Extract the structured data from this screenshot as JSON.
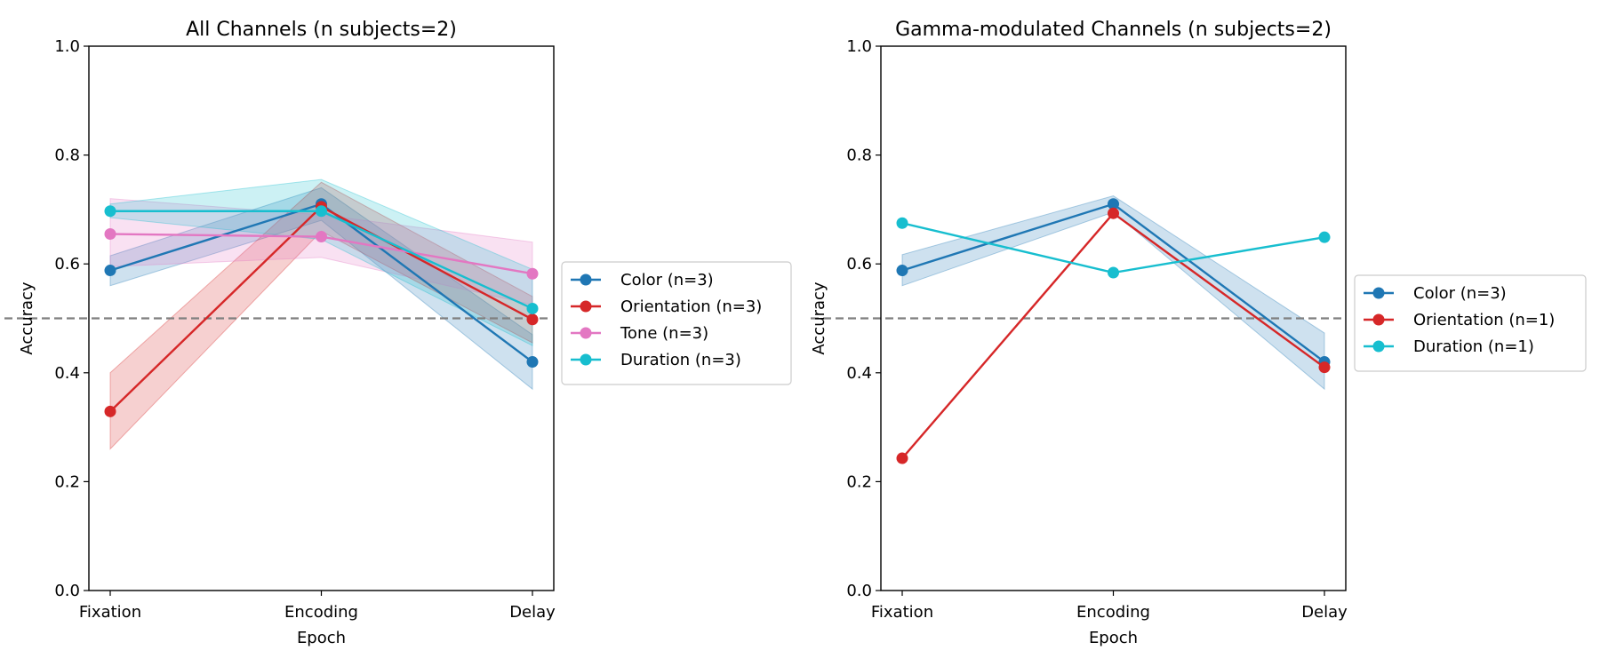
{
  "chart_data": [
    {
      "type": "line",
      "title": "All Channels (n subjects=2)",
      "xlabel": "Epoch",
      "ylabel": "Accuracy",
      "categories": [
        "Fixation",
        "Encoding",
        "Delay"
      ],
      "ylim": [
        0,
        1
      ],
      "yticks": [
        "0.0",
        "0.2",
        "0.4",
        "0.6",
        "0.8",
        "1.0"
      ],
      "chance_level": 0.5,
      "legend_position": "outside-right",
      "series": [
        {
          "name": "Color (n=3)",
          "color": "#1f77b4",
          "values": [
            0.588,
            0.71,
            0.42
          ],
          "lower": [
            0.56,
            0.68,
            0.37
          ],
          "upper": [
            0.615,
            0.74,
            0.47
          ]
        },
        {
          "name": "Orientation (n=3)",
          "color": "#d62728",
          "values": [
            0.329,
            0.705,
            0.498
          ],
          "lower": [
            0.26,
            0.66,
            0.455
          ],
          "upper": [
            0.4,
            0.75,
            0.54
          ]
        },
        {
          "name": "Tone (n=3)",
          "color": "#e377c2",
          "values": [
            0.655,
            0.65,
            0.582
          ],
          "lower": [
            0.595,
            0.612,
            0.525
          ],
          "upper": [
            0.72,
            0.69,
            0.64
          ]
        },
        {
          "name": "Duration (n=3)",
          "color": "#17becf",
          "values": [
            0.697,
            0.697,
            0.518
          ],
          "lower": [
            0.685,
            0.645,
            0.45
          ],
          "upper": [
            0.71,
            0.755,
            0.59
          ]
        }
      ]
    },
    {
      "type": "line",
      "title": "Gamma-modulated Channels (n subjects=2)",
      "xlabel": "Epoch",
      "ylabel": "Accuracy",
      "categories": [
        "Fixation",
        "Encoding",
        "Delay"
      ],
      "ylim": [
        0,
        1
      ],
      "yticks": [
        "0.0",
        "0.2",
        "0.4",
        "0.6",
        "0.8",
        "1.0"
      ],
      "chance_level": 0.5,
      "legend_position": "outside-right",
      "series": [
        {
          "name": "Color (n=3)",
          "color": "#1f77b4",
          "values": [
            0.588,
            0.71,
            0.42
          ],
          "lower": [
            0.56,
            0.695,
            0.37
          ],
          "upper": [
            0.617,
            0.725,
            0.473
          ]
        },
        {
          "name": "Orientation (n=1)",
          "color": "#d62728",
          "values": [
            0.243,
            0.693,
            0.41
          ]
        },
        {
          "name": "Duration (n=1)",
          "color": "#17becf",
          "values": [
            0.675,
            0.584,
            0.649
          ]
        }
      ]
    }
  ]
}
